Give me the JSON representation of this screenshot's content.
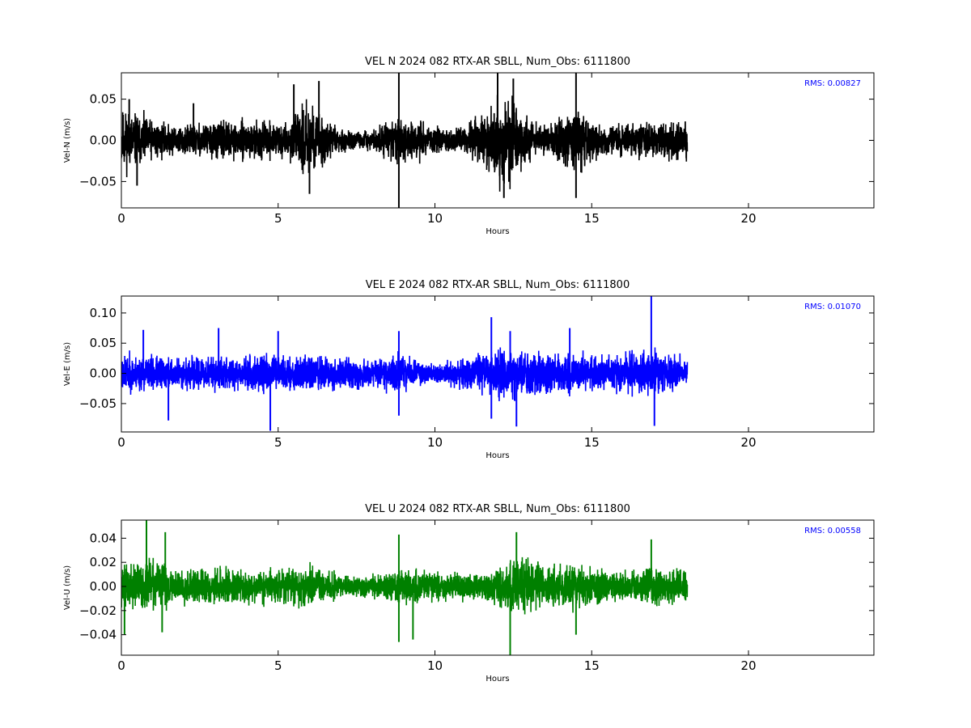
{
  "chart_data": [
    {
      "type": "line",
      "title": "VEL N 2024 082 RTX-AR  SBLL, Num_Obs: 6111800",
      "xlabel": "Hours",
      "ylabel": "Vel-N (m/s)",
      "xlim": [
        0,
        24
      ],
      "ylim": [
        -0.082,
        0.082
      ],
      "xticks": [
        0,
        5,
        10,
        15,
        20
      ],
      "xtick_labels": [
        "0",
        "5",
        "10",
        "15",
        "20"
      ],
      "yticks": [
        -0.05,
        0.0,
        0.05
      ],
      "ytick_labels": [
        "−0.05",
        "0.00",
        "0.05"
      ],
      "rms_label": "RMS:  0.00827",
      "rms_color": "#0000ff",
      "grid": false,
      "series": [
        {
          "color": "#000000",
          "x_range": [
            0,
            18.05
          ],
          "envelope": [
            [
              0.0,
              0.045
            ],
            [
              0.5,
              0.038
            ],
            [
              1.0,
              0.028
            ],
            [
              1.5,
              0.022
            ],
            [
              2.0,
              0.022
            ],
            [
              2.5,
              0.024
            ],
            [
              3.0,
              0.026
            ],
            [
              3.5,
              0.026
            ],
            [
              4.0,
              0.025
            ],
            [
              4.5,
              0.026
            ],
            [
              5.0,
              0.024
            ],
            [
              5.5,
              0.028
            ],
            [
              5.8,
              0.05
            ],
            [
              6.1,
              0.048
            ],
            [
              6.4,
              0.038
            ],
            [
              6.8,
              0.02
            ],
            [
              7.2,
              0.014
            ],
            [
              7.6,
              0.012
            ],
            [
              8.0,
              0.014
            ],
            [
              8.5,
              0.024
            ],
            [
              8.9,
              0.034
            ],
            [
              9.2,
              0.03
            ],
            [
              9.6,
              0.024
            ],
            [
              10.0,
              0.018
            ],
            [
              10.5,
              0.018
            ],
            [
              11.0,
              0.022
            ],
            [
              11.5,
              0.036
            ],
            [
              12.0,
              0.062
            ],
            [
              12.5,
              0.052
            ],
            [
              12.9,
              0.036
            ],
            [
              13.3,
              0.018
            ],
            [
              13.8,
              0.024
            ],
            [
              14.2,
              0.04
            ],
            [
              14.6,
              0.042
            ],
            [
              15.0,
              0.028
            ],
            [
              15.5,
              0.02
            ],
            [
              16.0,
              0.024
            ],
            [
              16.5,
              0.024
            ],
            [
              17.0,
              0.024
            ],
            [
              17.5,
              0.026
            ],
            [
              18.05,
              0.03
            ]
          ],
          "spikes": [
            [
              0.25,
              0.05
            ],
            [
              2.3,
              0.045
            ],
            [
              5.5,
              0.068
            ],
            [
              6.3,
              0.072
            ],
            [
              8.85,
              0.09
            ],
            [
              8.85,
              -0.09
            ],
            [
              12.0,
              0.09
            ],
            [
              12.5,
              0.075
            ],
            [
              14.5,
              0.09
            ],
            [
              14.5,
              -0.07
            ],
            [
              12.2,
              -0.07
            ],
            [
              6.0,
              -0.065
            ],
            [
              0.5,
              -0.055
            ]
          ]
        }
      ]
    },
    {
      "type": "line",
      "title": "VEL E 2024 082 RTX-AR  SBLL, Num_Obs: 6111800",
      "xlabel": "Hours",
      "ylabel": "Vel-E (m/s)",
      "xlim": [
        0,
        24
      ],
      "ylim": [
        -0.097,
        0.128
      ],
      "xticks": [
        0,
        5,
        10,
        15,
        20
      ],
      "xtick_labels": [
        "0",
        "5",
        "10",
        "15",
        "20"
      ],
      "yticks": [
        -0.05,
        0.0,
        0.05,
        0.1
      ],
      "ytick_labels": [
        "−0.05",
        "0.00",
        "0.05",
        "0.10"
      ],
      "rms_label": "RMS:  0.01070",
      "rms_color": "#0000ff",
      "grid": false,
      "series": [
        {
          "color": "#0000ff",
          "x_range": [
            0,
            18.05
          ],
          "envelope": [
            [
              0.0,
              0.036
            ],
            [
              1.0,
              0.034
            ],
            [
              2.0,
              0.03
            ],
            [
              3.0,
              0.032
            ],
            [
              4.0,
              0.032
            ],
            [
              5.0,
              0.036
            ],
            [
              6.0,
              0.036
            ],
            [
              7.0,
              0.034
            ],
            [
              8.0,
              0.026
            ],
            [
              8.9,
              0.036
            ],
            [
              9.5,
              0.024
            ],
            [
              10.0,
              0.02
            ],
            [
              11.0,
              0.03
            ],
            [
              11.5,
              0.036
            ],
            [
              12.0,
              0.048
            ],
            [
              13.0,
              0.042
            ],
            [
              14.0,
              0.04
            ],
            [
              15.0,
              0.038
            ],
            [
              16.0,
              0.036
            ],
            [
              17.0,
              0.046
            ],
            [
              18.05,
              0.03
            ]
          ],
          "spikes": [
            [
              0.7,
              0.072
            ],
            [
              3.1,
              0.075
            ],
            [
              4.75,
              -0.095
            ],
            [
              1.5,
              -0.078
            ],
            [
              5.0,
              0.07
            ],
            [
              8.85,
              0.07
            ],
            [
              8.85,
              -0.07
            ],
            [
              11.8,
              0.093
            ],
            [
              12.4,
              0.07
            ],
            [
              12.6,
              -0.088
            ],
            [
              14.3,
              0.075
            ],
            [
              16.9,
              0.128
            ],
            [
              17.0,
              -0.087
            ],
            [
              11.8,
              -0.075
            ]
          ]
        }
      ]
    },
    {
      "type": "line",
      "title": "VEL U 2024 082 RTX-AR  SBLL, Num_Obs: 6111800",
      "xlabel": "Hours",
      "ylabel": "Vel-U (m/s)",
      "xlim": [
        0,
        24
      ],
      "ylim": [
        -0.057,
        0.055
      ],
      "xticks": [
        0,
        5,
        10,
        15,
        20
      ],
      "xtick_labels": [
        "0",
        "5",
        "10",
        "15",
        "20"
      ],
      "yticks": [
        -0.04,
        -0.02,
        0.0,
        0.02,
        0.04
      ],
      "ytick_labels": [
        "−0.04",
        "−0.02",
        "0.00",
        "0.02",
        "0.04"
      ],
      "rms_label": "RMS:  0.00558",
      "rms_color": "#0000ff",
      "grid": false,
      "series": [
        {
          "color": "#008000",
          "x_range": [
            0,
            18.05
          ],
          "envelope": [
            [
              0.0,
              0.02
            ],
            [
              0.5,
              0.024
            ],
            [
              1.0,
              0.024
            ],
            [
              1.5,
              0.02
            ],
            [
              2.0,
              0.016
            ],
            [
              3.0,
              0.018
            ],
            [
              4.0,
              0.016
            ],
            [
              5.0,
              0.016
            ],
            [
              5.8,
              0.022
            ],
            [
              6.3,
              0.018
            ],
            [
              7.0,
              0.012
            ],
            [
              7.6,
              0.009
            ],
            [
              8.3,
              0.012
            ],
            [
              8.9,
              0.02
            ],
            [
              9.5,
              0.016
            ],
            [
              10.5,
              0.012
            ],
            [
              11.5,
              0.014
            ],
            [
              12.0,
              0.018
            ],
            [
              12.5,
              0.03
            ],
            [
              13.0,
              0.024
            ],
            [
              13.8,
              0.018
            ],
            [
              14.5,
              0.022
            ],
            [
              15.2,
              0.016
            ],
            [
              16.0,
              0.014
            ],
            [
              17.0,
              0.018
            ],
            [
              18.05,
              0.016
            ]
          ],
          "spikes": [
            [
              0.8,
              0.055
            ],
            [
              1.4,
              0.045
            ],
            [
              1.3,
              -0.038
            ],
            [
              8.85,
              0.043
            ],
            [
              8.85,
              -0.046
            ],
            [
              12.4,
              -0.057
            ],
            [
              12.6,
              0.045
            ],
            [
              14.5,
              -0.04
            ],
            [
              16.9,
              0.039
            ],
            [
              9.3,
              -0.044
            ],
            [
              0.1,
              -0.04
            ]
          ]
        }
      ]
    }
  ]
}
